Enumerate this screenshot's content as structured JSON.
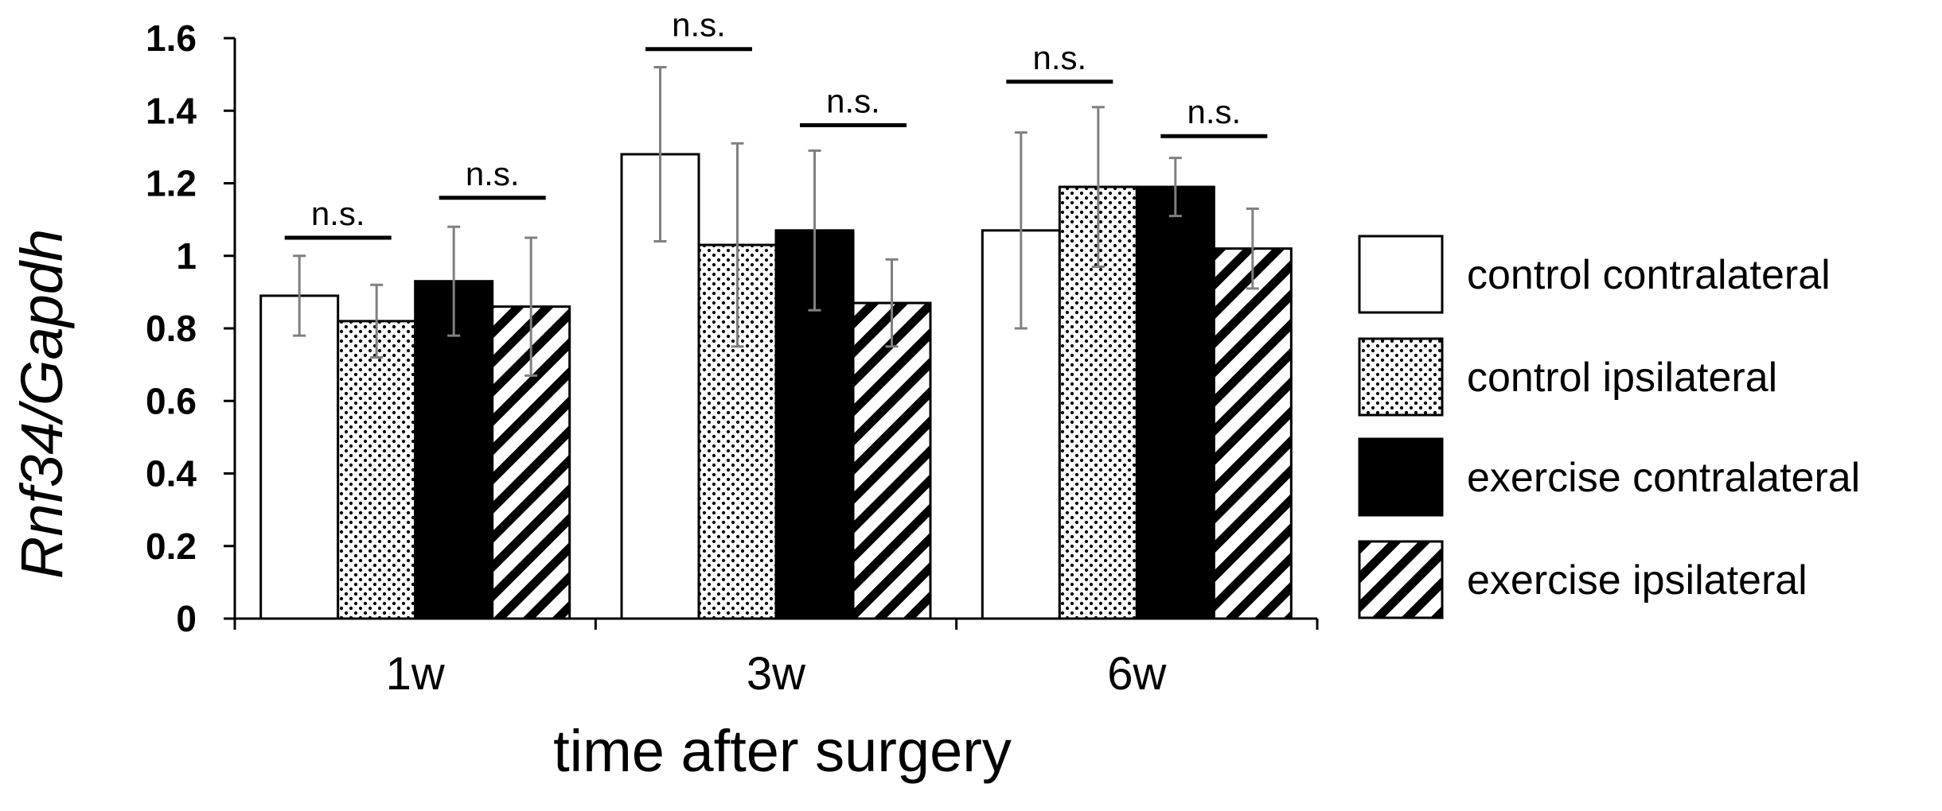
{
  "chart_data": {
    "type": "bar",
    "title": "",
    "xlabel": "time after surgery",
    "ylabel": "Rnf34/Gapdh",
    "ylim": [
      0,
      1.6
    ],
    "yticks": [
      0,
      0.2,
      0.4,
      0.6,
      0.8,
      1,
      1.2,
      1.4,
      1.6
    ],
    "ytick_labels": [
      "0",
      "0.2",
      "0.4",
      "0.6",
      "0.8",
      "1",
      "1.2",
      "1.4",
      "1.6"
    ],
    "grid": false,
    "legend_position": "right",
    "categories": [
      "1w",
      "3w",
      "6w"
    ],
    "series": [
      {
        "name": "control contralateral",
        "pattern": "solid-white",
        "values": [
          0.89,
          1.28,
          1.07
        ],
        "errors": [
          0.11,
          0.24,
          0.27
        ]
      },
      {
        "name": "control ipsilateral",
        "pattern": "dotted",
        "values": [
          0.82,
          1.03,
          1.19
        ],
        "errors": [
          0.1,
          0.28,
          0.22
        ]
      },
      {
        "name": "exercise contralateral",
        "pattern": "solid-black",
        "values": [
          0.93,
          1.07,
          1.19
        ],
        "errors": [
          0.15,
          0.22,
          0.08
        ]
      },
      {
        "name": "exercise ipsilateral",
        "pattern": "diagonal-stripes",
        "values": [
          0.86,
          0.87,
          1.02
        ],
        "errors": [
          0.19,
          0.12,
          0.11
        ]
      }
    ],
    "annotations": [
      {
        "text": "n.s.",
        "category": "1w",
        "pair": [
          0,
          1
        ],
        "y": 1.05
      },
      {
        "text": "n.s.",
        "category": "1w",
        "pair": [
          2,
          3
        ],
        "y": 1.16
      },
      {
        "text": "n.s.",
        "category": "3w",
        "pair": [
          0,
          1
        ],
        "y": 1.57
      },
      {
        "text": "n.s.",
        "category": "3w",
        "pair": [
          2,
          3
        ],
        "y": 1.36
      },
      {
        "text": "n.s.",
        "category": "6w",
        "pair": [
          0,
          1
        ],
        "y": 1.48
      },
      {
        "text": "n.s.",
        "category": "6w",
        "pair": [
          2,
          3
        ],
        "y": 1.33
      }
    ],
    "colors": {
      "axis": "#000000",
      "error_bar": "#808080",
      "bar_outline": "#000000",
      "fill_white": "#ffffff",
      "fill_black": "#000000"
    }
  }
}
